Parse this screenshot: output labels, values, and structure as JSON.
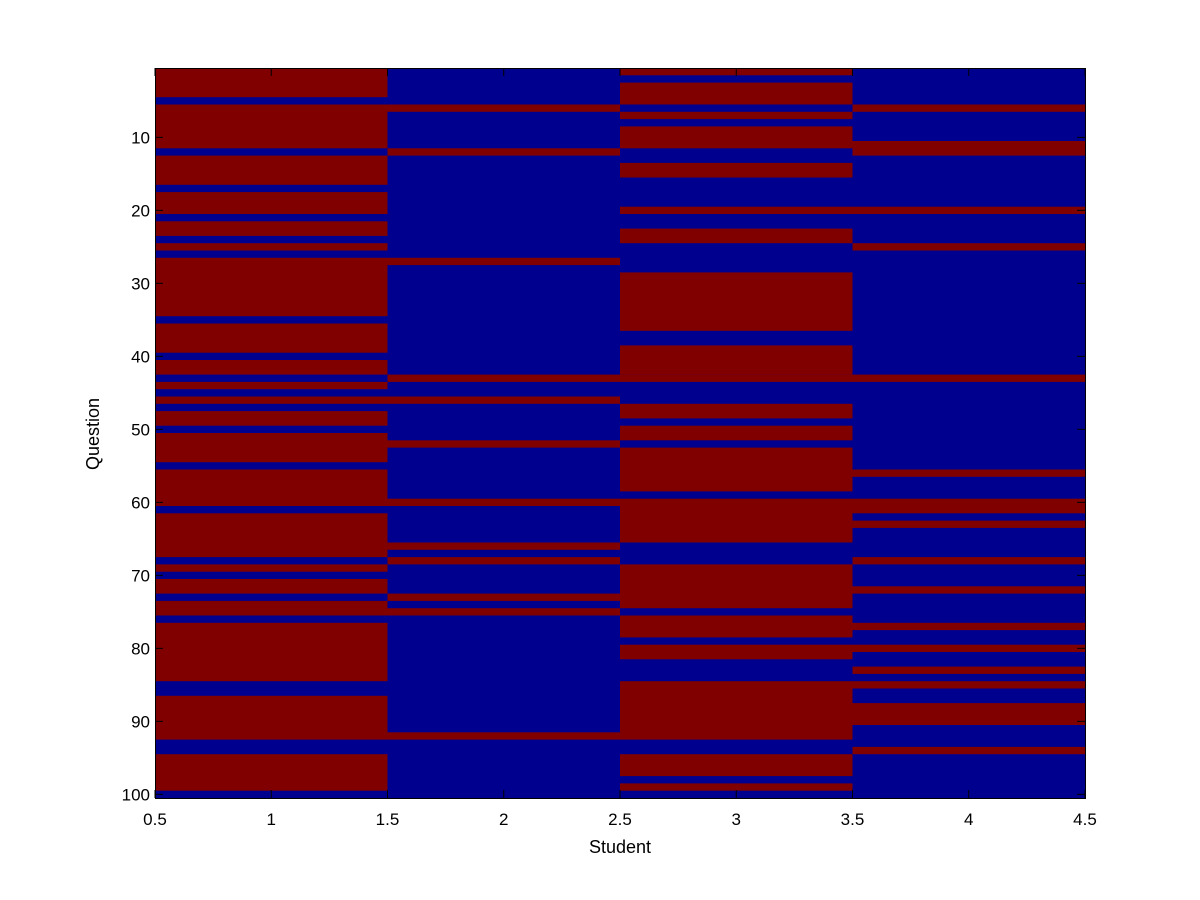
{
  "chart_data": {
    "type": "heatmap",
    "title": "",
    "xlabel": "Student",
    "ylabel": "Question",
    "xlim": [
      0.5,
      4.5
    ],
    "ylim": [
      0.5,
      100.5
    ],
    "y_reversed": true,
    "grid": false,
    "x_ticks": [
      "0.5",
      "1",
      "1.5",
      "2",
      "2.5",
      "3",
      "3.5",
      "4",
      "4.5"
    ],
    "y_ticks": [
      "10",
      "20",
      "30",
      "40",
      "50",
      "60",
      "70",
      "80",
      "90",
      "100"
    ],
    "colors": {
      "value_1": "#800000",
      "value_0": "#00008f"
    },
    "columns": [
      {
        "student": 1,
        "value_1_questions": [
          [
            1,
            4
          ],
          [
            6,
            11
          ],
          [
            13,
            16
          ],
          [
            18,
            20
          ],
          [
            22,
            23
          ],
          [
            25,
            25
          ],
          [
            27,
            34
          ],
          [
            36,
            39
          ],
          [
            41,
            42
          ],
          [
            44,
            44
          ],
          [
            46,
            46
          ],
          [
            48,
            49
          ],
          [
            51,
            54
          ],
          [
            56,
            60
          ],
          [
            62,
            67
          ],
          [
            69,
            69
          ],
          [
            71,
            72
          ],
          [
            74,
            75
          ],
          [
            77,
            84
          ],
          [
            87,
            92
          ],
          [
            95,
            99
          ]
        ]
      },
      {
        "student": 2,
        "value_1_questions": [
          [
            6,
            6
          ],
          [
            12,
            12
          ],
          [
            27,
            27
          ],
          [
            43,
            43
          ],
          [
            46,
            46
          ],
          [
            52,
            52
          ],
          [
            60,
            60
          ],
          [
            66,
            66
          ],
          [
            68,
            68
          ],
          [
            73,
            73
          ],
          [
            75,
            75
          ],
          [
            92,
            92
          ]
        ]
      },
      {
        "student": 3,
        "value_1_questions": [
          [
            1,
            1
          ],
          [
            3,
            5
          ],
          [
            7,
            7
          ],
          [
            9,
            11
          ],
          [
            14,
            15
          ],
          [
            20,
            20
          ],
          [
            23,
            24
          ],
          [
            29,
            36
          ],
          [
            39,
            42
          ],
          [
            43,
            43
          ],
          [
            47,
            48
          ],
          [
            50,
            51
          ],
          [
            53,
            58
          ],
          [
            60,
            65
          ],
          [
            69,
            74
          ],
          [
            76,
            78
          ],
          [
            80,
            81
          ],
          [
            85,
            92
          ],
          [
            95,
            97
          ],
          [
            99,
            99
          ]
        ]
      },
      {
        "student": 4,
        "value_1_questions": [
          [
            6,
            6
          ],
          [
            11,
            12
          ],
          [
            20,
            20
          ],
          [
            25,
            25
          ],
          [
            43,
            43
          ],
          [
            56,
            56
          ],
          [
            60,
            61
          ],
          [
            63,
            63
          ],
          [
            68,
            68
          ],
          [
            72,
            72
          ],
          [
            77,
            77
          ],
          [
            80,
            80
          ],
          [
            83,
            83
          ],
          [
            85,
            85
          ],
          [
            88,
            90
          ],
          [
            94,
            94
          ]
        ]
      }
    ]
  }
}
